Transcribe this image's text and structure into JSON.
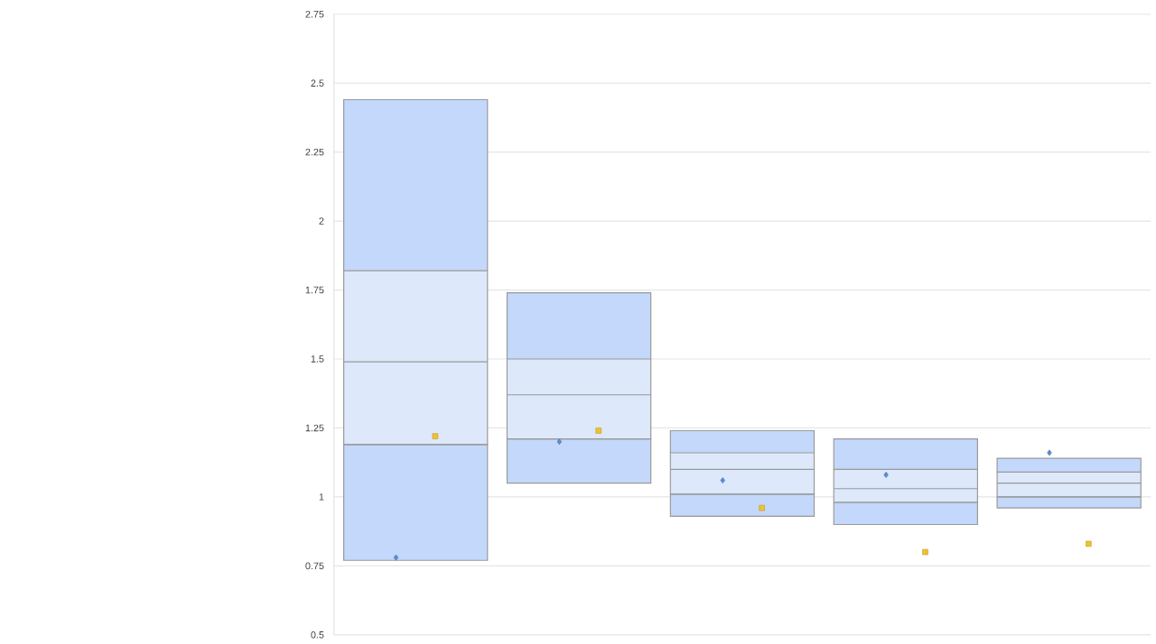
{
  "chart_data": {
    "type": "box",
    "categories": [
      null,
      null,
      null,
      null,
      null
    ],
    "series": [
      {
        "color": "#dde8fb",
        "boxes": [
          {
            "low": 0.77,
            "q1": 1.19,
            "median": 1.49,
            "q3": 1.82,
            "high": 2.44
          },
          {
            "low": 1.05,
            "q1": 1.21,
            "median": 1.37,
            "q3": 1.5,
            "high": 1.74
          },
          {
            "low": 0.93,
            "q1": 1.01,
            "median": 1.1,
            "q3": 1.16,
            "high": 1.24
          },
          {
            "low": 0.9,
            "q1": 0.98,
            "median": 1.03,
            "q3": 1.1,
            "high": 1.21
          },
          {
            "low": 0.96,
            "q1": 1.0,
            "median": 1.05,
            "q3": 1.09,
            "high": 1.14
          }
        ]
      },
      {
        "type": "scatter",
        "color": "#5b8bd8",
        "marker": "diamond",
        "values": [
          0.78,
          1.2,
          1.06,
          1.08,
          1.16
        ]
      },
      {
        "type": "scatter",
        "color": "#f2c12e",
        "marker": "square",
        "values": [
          1.22,
          1.24,
          0.96,
          0.8,
          0.83
        ]
      }
    ],
    "ylim": [
      0.5,
      2.75
    ],
    "yticks": [
      0.5,
      0.75,
      1,
      1.25,
      1.5,
      1.75,
      2,
      2.25,
      2.5,
      2.75
    ],
    "grid": "y"
  }
}
